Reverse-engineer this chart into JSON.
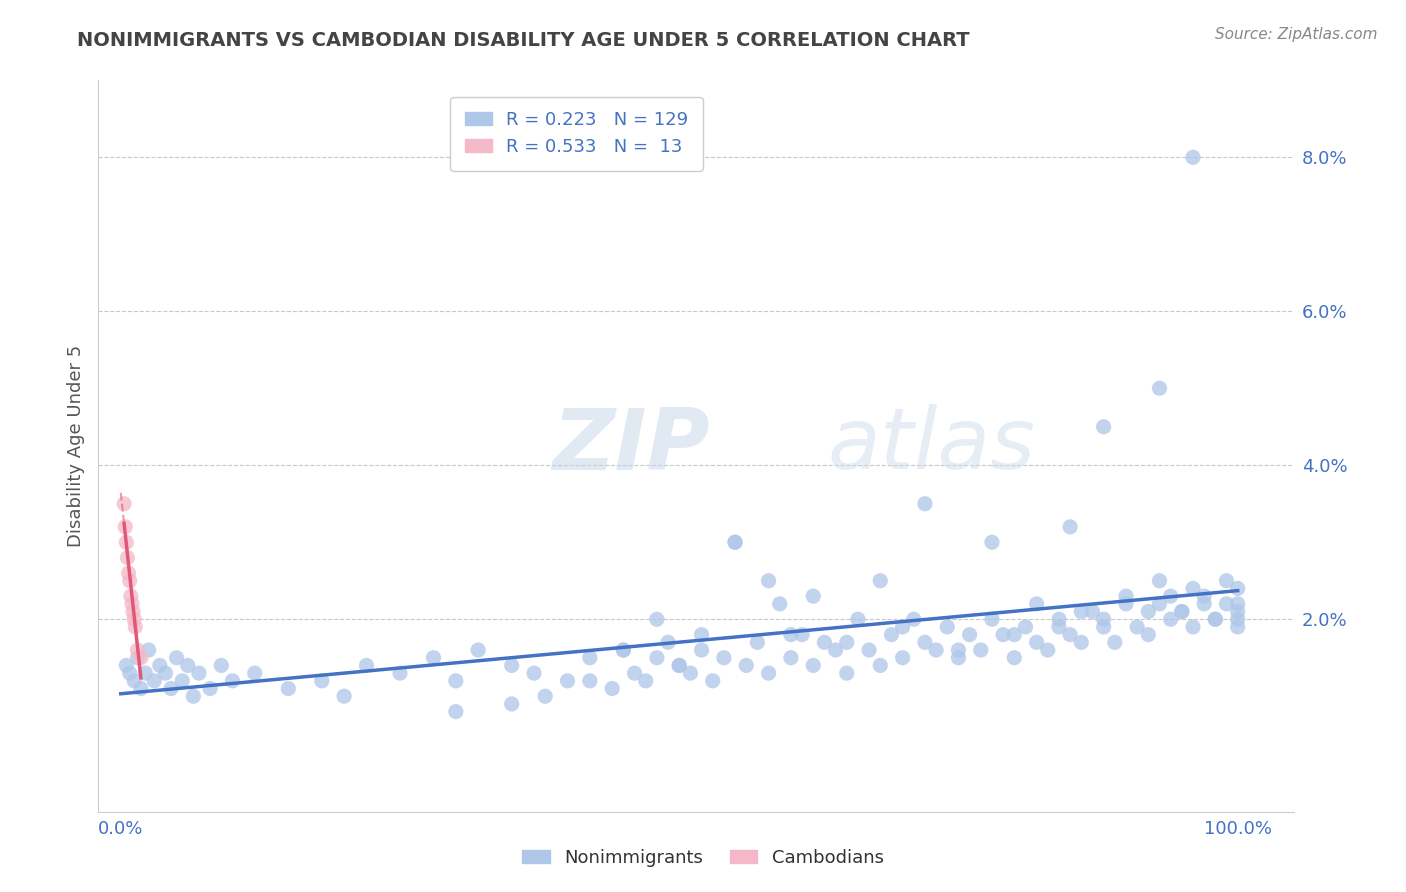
{
  "title": "NONIMMIGRANTS VS CAMBODIAN DISABILITY AGE UNDER 5 CORRELATION CHART",
  "source": "Source: ZipAtlas.com",
  "ylabel": "Disability Age Under 5",
  "watermark": "ZIPatlas",
  "nonimmigrant_R": 0.223,
  "nonimmigrant_N": 129,
  "cambodian_R": 0.533,
  "cambodian_N": 13,
  "nonimmigrant_color": "#aec6e8",
  "cambodian_color": "#f4b8c8",
  "trend_blue": "#4472c4",
  "trend_pink": "#e05878",
  "background_color": "#ffffff",
  "grid_color": "#c8c8c8",
  "title_color": "#444444",
  "axis_label_color": "#4472c4",
  "xlim": [
    -0.02,
    1.05
  ],
  "ylim": [
    -0.005,
    0.09
  ],
  "xticks": [
    0.0,
    0.5,
    1.0
  ],
  "xtick_labels": [
    "0.0%",
    "",
    "100.0%"
  ],
  "ytick_vals": [
    0.02,
    0.04,
    0.06,
    0.08
  ],
  "ytick_labels": [
    "2.0%",
    "4.0%",
    "6.0%",
    "8.0%"
  ],
  "ni_x": [
    0.005,
    0.008,
    0.012,
    0.015,
    0.018,
    0.022,
    0.025,
    0.03,
    0.035,
    0.04,
    0.045,
    0.05,
    0.055,
    0.06,
    0.065,
    0.07,
    0.08,
    0.09,
    0.1,
    0.12,
    0.15,
    0.18,
    0.2,
    0.22,
    0.25,
    0.28,
    0.3,
    0.32,
    0.35,
    0.37,
    0.4,
    0.42,
    0.44,
    0.45,
    0.46,
    0.47,
    0.48,
    0.49,
    0.5,
    0.51,
    0.52,
    0.53,
    0.54,
    0.55,
    0.56,
    0.57,
    0.58,
    0.59,
    0.6,
    0.61,
    0.62,
    0.63,
    0.64,
    0.65,
    0.66,
    0.67,
    0.68,
    0.69,
    0.7,
    0.71,
    0.72,
    0.73,
    0.74,
    0.75,
    0.76,
    0.77,
    0.78,
    0.79,
    0.8,
    0.81,
    0.82,
    0.83,
    0.84,
    0.85,
    0.86,
    0.87,
    0.88,
    0.89,
    0.9,
    0.91,
    0.92,
    0.93,
    0.94,
    0.95,
    0.96,
    0.97,
    0.98,
    0.99,
    1.0,
    1.0,
    1.0,
    1.0,
    1.0,
    0.93,
    0.94,
    0.95,
    0.96,
    0.97,
    0.98,
    0.99,
    0.8,
    0.82,
    0.84,
    0.86,
    0.88,
    0.9,
    0.92,
    0.6,
    0.65,
    0.7,
    0.75,
    0.5,
    0.55,
    0.45,
    0.42,
    0.38,
    0.35,
    0.3,
    0.48,
    0.52,
    0.58,
    0.62,
    0.68,
    0.72,
    0.78,
    0.85,
    0.88,
    0.93,
    0.96
  ],
  "ni_y": [
    0.014,
    0.013,
    0.012,
    0.015,
    0.011,
    0.013,
    0.016,
    0.012,
    0.014,
    0.013,
    0.011,
    0.015,
    0.012,
    0.014,
    0.01,
    0.013,
    0.011,
    0.014,
    0.012,
    0.013,
    0.011,
    0.012,
    0.01,
    0.014,
    0.013,
    0.015,
    0.012,
    0.016,
    0.014,
    0.013,
    0.012,
    0.015,
    0.011,
    0.016,
    0.013,
    0.012,
    0.015,
    0.017,
    0.014,
    0.013,
    0.016,
    0.012,
    0.015,
    0.03,
    0.014,
    0.017,
    0.013,
    0.022,
    0.015,
    0.018,
    0.014,
    0.017,
    0.016,
    0.013,
    0.02,
    0.016,
    0.014,
    0.018,
    0.015,
    0.02,
    0.017,
    0.016,
    0.019,
    0.015,
    0.018,
    0.016,
    0.02,
    0.018,
    0.015,
    0.019,
    0.017,
    0.016,
    0.02,
    0.018,
    0.017,
    0.021,
    0.019,
    0.017,
    0.022,
    0.019,
    0.018,
    0.022,
    0.02,
    0.021,
    0.019,
    0.023,
    0.02,
    0.022,
    0.021,
    0.024,
    0.019,
    0.022,
    0.02,
    0.025,
    0.023,
    0.021,
    0.024,
    0.022,
    0.02,
    0.025,
    0.018,
    0.022,
    0.019,
    0.021,
    0.02,
    0.023,
    0.021,
    0.018,
    0.017,
    0.019,
    0.016,
    0.014,
    0.03,
    0.016,
    0.012,
    0.01,
    0.009,
    0.008,
    0.02,
    0.018,
    0.025,
    0.023,
    0.025,
    0.035,
    0.03,
    0.032,
    0.045,
    0.05,
    0.08
  ],
  "cam_x": [
    0.003,
    0.004,
    0.005,
    0.006,
    0.007,
    0.008,
    0.009,
    0.01,
    0.011,
    0.012,
    0.013,
    0.015,
    0.018
  ],
  "cam_y": [
    0.035,
    0.032,
    0.03,
    0.028,
    0.026,
    0.025,
    0.023,
    0.022,
    0.021,
    0.02,
    0.019,
    0.016,
    0.015
  ]
}
